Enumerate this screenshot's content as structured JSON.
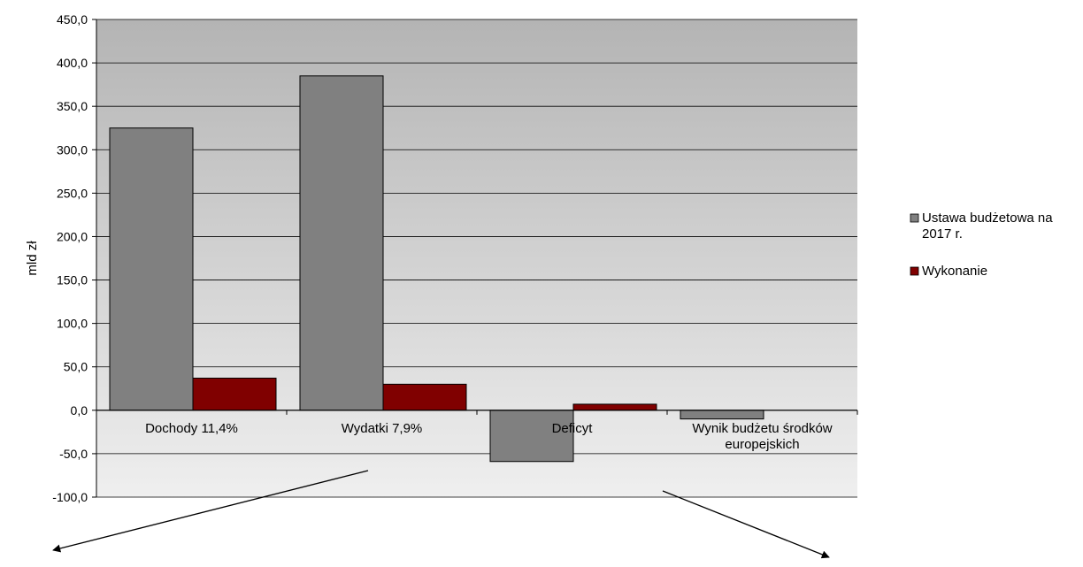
{
  "chart_data": {
    "type": "bar",
    "title": "",
    "xlabel": "",
    "ylabel": "mld zł",
    "ylim": [
      -100,
      450
    ],
    "yticks": [
      "450,0",
      "400,0",
      "350,0",
      "300,0",
      "250,0",
      "200,0",
      "150,0",
      "100,0",
      "50,0",
      "0,0",
      "-50,0",
      "-100,0"
    ],
    "ytick_values": [
      450,
      400,
      350,
      300,
      250,
      200,
      150,
      100,
      50,
      0,
      -50,
      -100
    ],
    "grid": true,
    "legend_position": "right",
    "categories": [
      "Dochody 11,4%",
      "Wydatki 7,9%",
      "Deficyt",
      "Wynik budżetu środków europejskich"
    ],
    "series": [
      {
        "name": "Ustawa budżetowa na 2017 r.",
        "color": "#808080",
        "values": [
          325,
          385,
          -59,
          -10
        ]
      },
      {
        "name": "Wykonanie",
        "color": "#800000",
        "values": [
          37,
          30,
          7,
          0
        ]
      }
    ],
    "plot_colors": {
      "background_top": "#b4b4b4",
      "background_bottom": "#efefef",
      "gridline": "#000000"
    },
    "annotations": [
      "arrow-left",
      "arrow-right"
    ]
  }
}
